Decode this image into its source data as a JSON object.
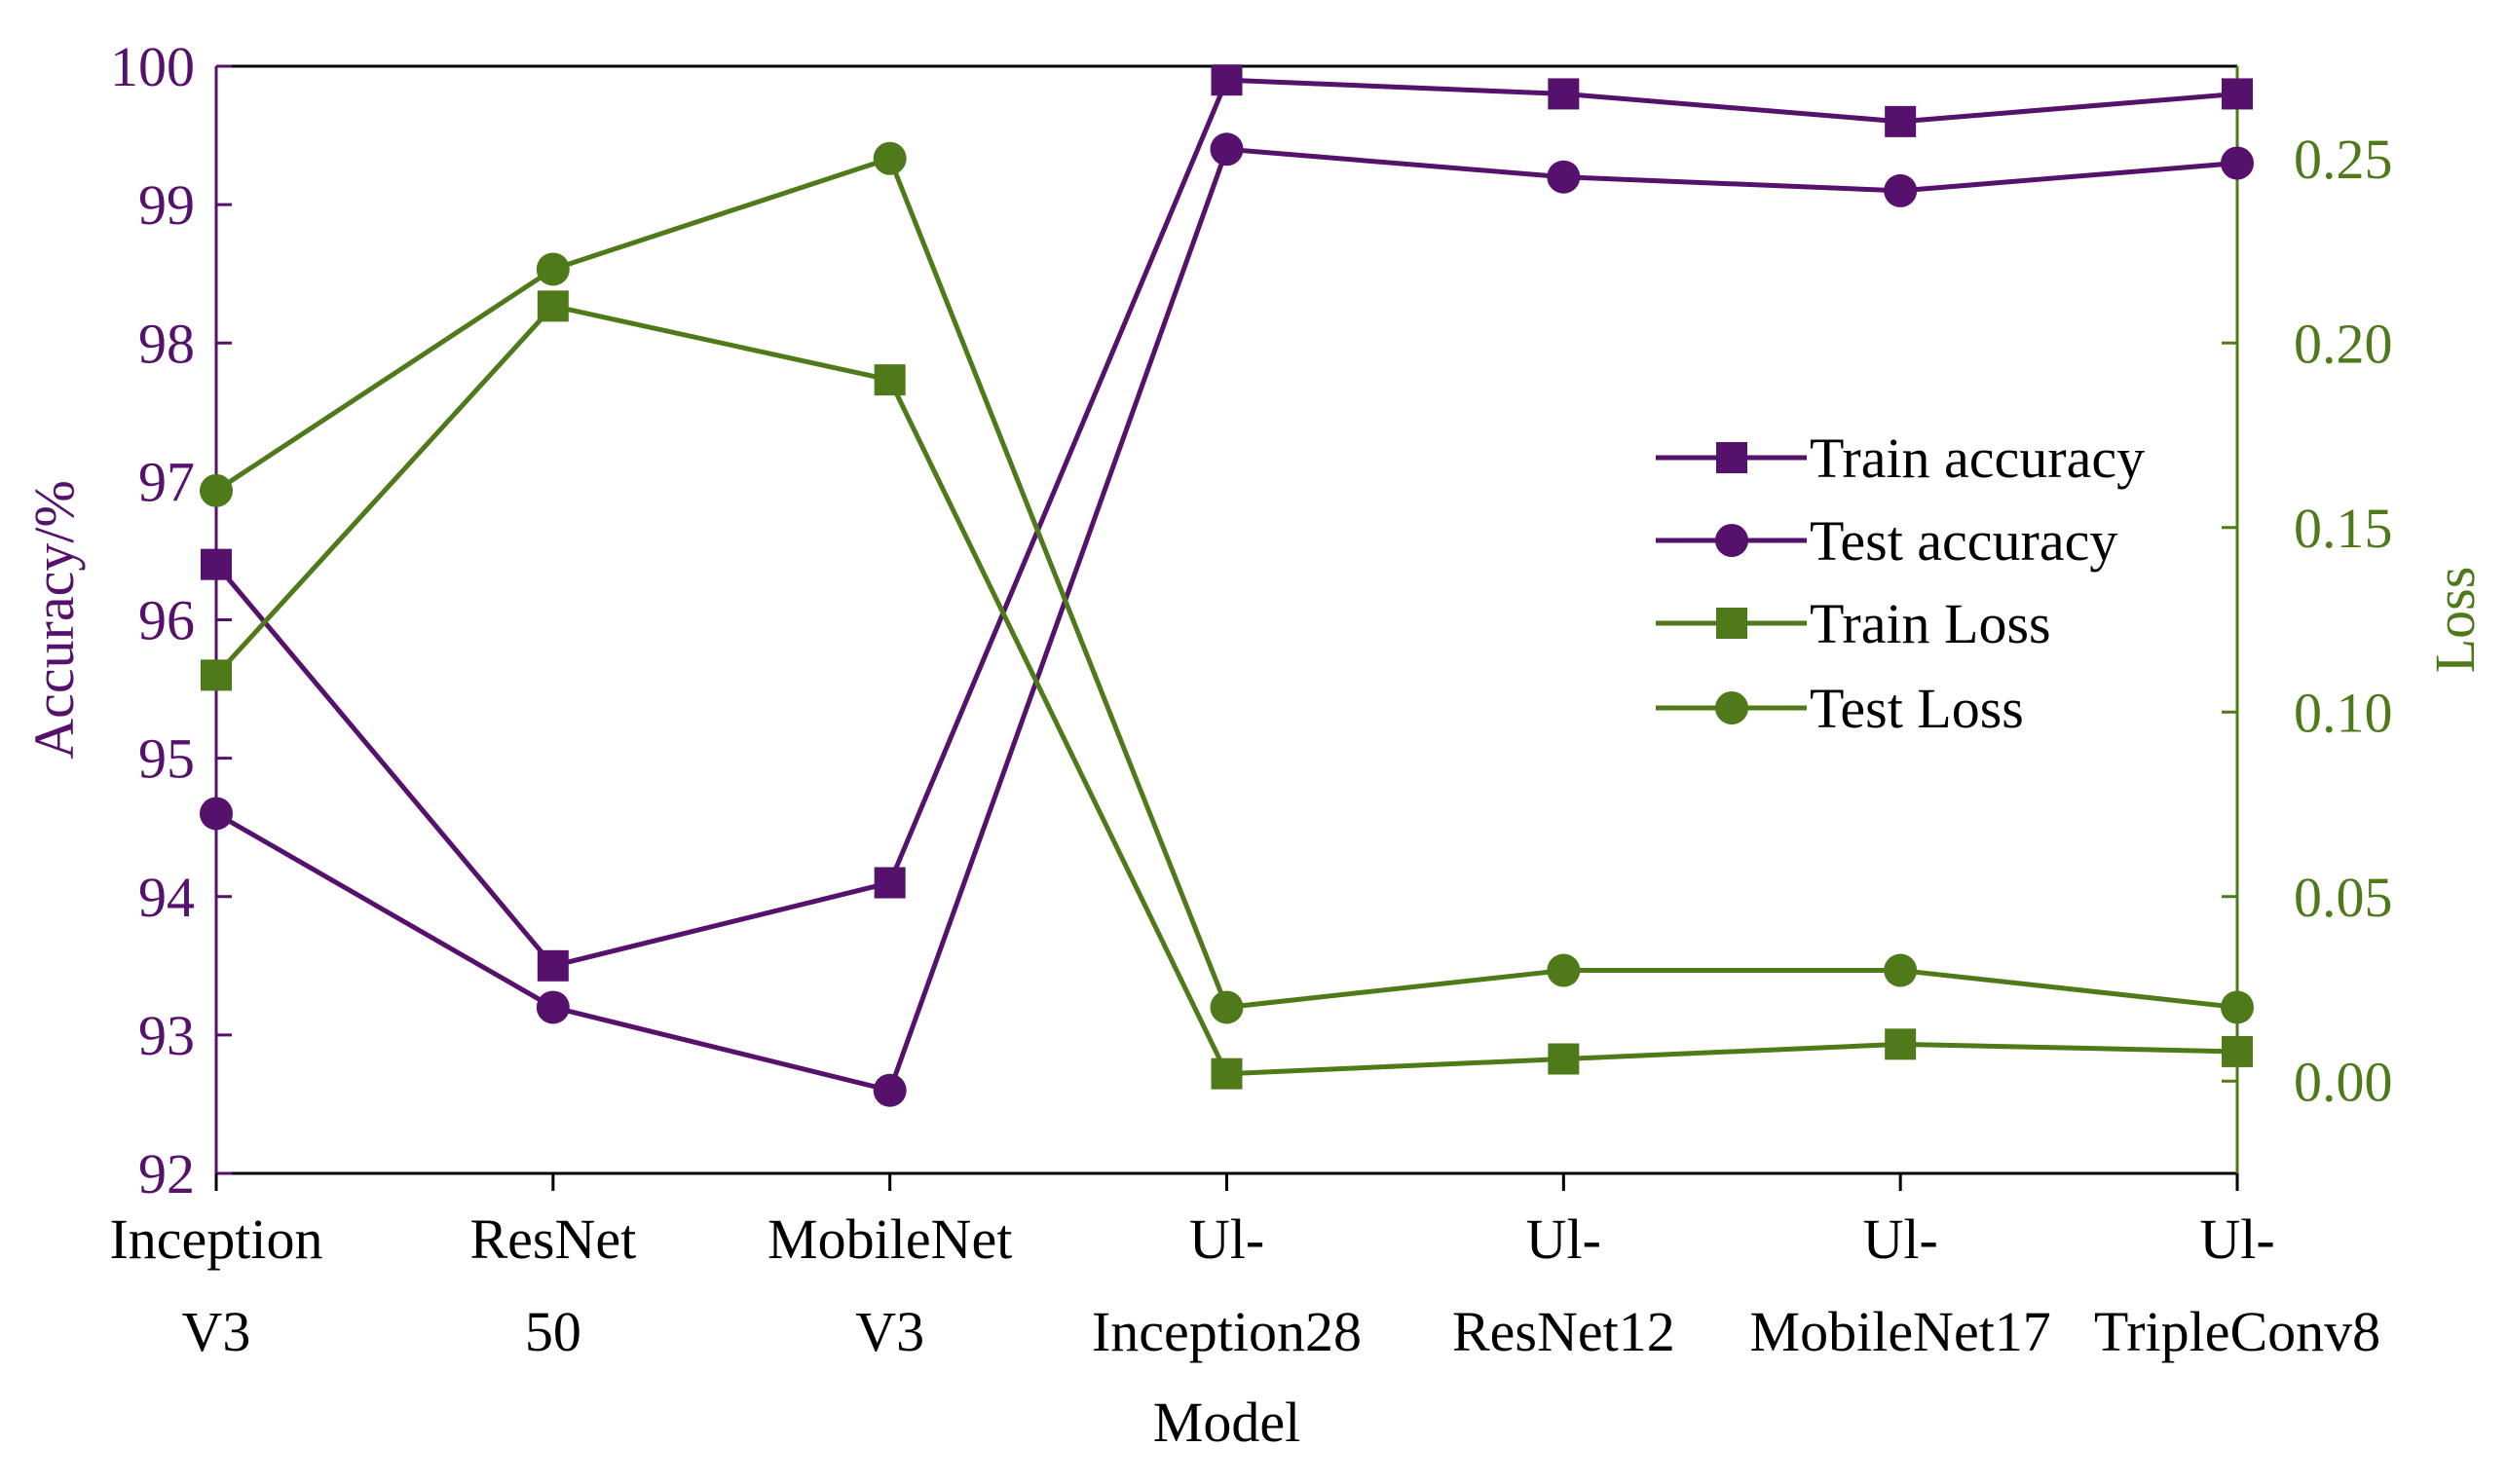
{
  "colors": {
    "accuracy": "#55116b",
    "loss": "#4e7a19",
    "axis": "#000000"
  },
  "chart_data": {
    "type": "line",
    "title": "",
    "xlabel": "Model",
    "ylabel_left": "Accuracy/%",
    "ylabel_right": "Loss",
    "categories": [
      [
        "Inception",
        "V3"
      ],
      [
        "ResNet",
        "50"
      ],
      [
        "MobileNet",
        "V3"
      ],
      [
        "Ul-",
        "Inception28"
      ],
      [
        "Ul-",
        "ResNet12"
      ],
      [
        "Ul-",
        "MobileNet17"
      ],
      [
        "Ul-",
        "TripleConv8"
      ]
    ],
    "ylim_left": [
      92,
      100
    ],
    "yticks_left": [
      "92",
      "93",
      "94",
      "95",
      "96",
      "97",
      "98",
      "99",
      "100"
    ],
    "ylim_right": [
      -0.025,
      0.275
    ],
    "yticks_right": [
      "0.00",
      "0.05",
      "0.10",
      "0.15",
      "0.20",
      "0.25"
    ],
    "series": [
      {
        "name": "Train accuracy",
        "axis": "left",
        "marker": "square",
        "color": "#55116b",
        "values": [
          96.4,
          93.5,
          94.1,
          99.9,
          99.8,
          99.6,
          99.8
        ]
      },
      {
        "name": "Test accuracy",
        "axis": "left",
        "marker": "circle",
        "color": "#55116b",
        "values": [
          94.6,
          93.2,
          92.6,
          99.4,
          99.2,
          99.1,
          99.3
        ]
      },
      {
        "name": "Train Loss",
        "axis": "right",
        "marker": "square",
        "color": "#4e7a19",
        "values": [
          0.11,
          0.21,
          0.19,
          0.002,
          0.006,
          0.01,
          0.008
        ]
      },
      {
        "name": "Test Loss",
        "axis": "right",
        "marker": "circle",
        "color": "#4e7a19",
        "values": [
          0.16,
          0.22,
          0.25,
          0.02,
          0.03,
          0.03,
          0.02
        ]
      }
    ],
    "legend": "center-right",
    "grid": false
  }
}
